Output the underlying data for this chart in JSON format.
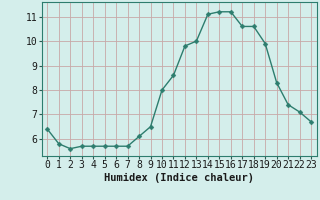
{
  "x": [
    0,
    1,
    2,
    3,
    4,
    5,
    6,
    7,
    8,
    9,
    10,
    11,
    12,
    13,
    14,
    15,
    16,
    17,
    18,
    19,
    20,
    21,
    22,
    23
  ],
  "y": [
    6.4,
    5.8,
    5.6,
    5.7,
    5.7,
    5.7,
    5.7,
    5.7,
    6.1,
    6.5,
    8.0,
    8.6,
    9.8,
    10.0,
    11.1,
    11.2,
    11.2,
    10.6,
    10.6,
    9.9,
    8.3,
    7.4,
    7.1,
    6.7
  ],
  "line_color": "#2d7d6e",
  "marker": "D",
  "marker_size": 2.5,
  "linewidth": 1.0,
  "bg_color": "#d4eeeb",
  "grid_color": "#c0ddd9",
  "xlabel": "Humidex (Indice chaleur)",
  "xlabel_fontsize": 7.5,
  "tick_fontsize": 7,
  "xlim": [
    -0.5,
    23.5
  ],
  "ylim": [
    5.3,
    11.6
  ],
  "yticks": [
    6,
    7,
    8,
    9,
    10,
    11
  ],
  "xticks": [
    0,
    1,
    2,
    3,
    4,
    5,
    6,
    7,
    8,
    9,
    10,
    11,
    12,
    13,
    14,
    15,
    16,
    17,
    18,
    19,
    20,
    21,
    22,
    23
  ]
}
